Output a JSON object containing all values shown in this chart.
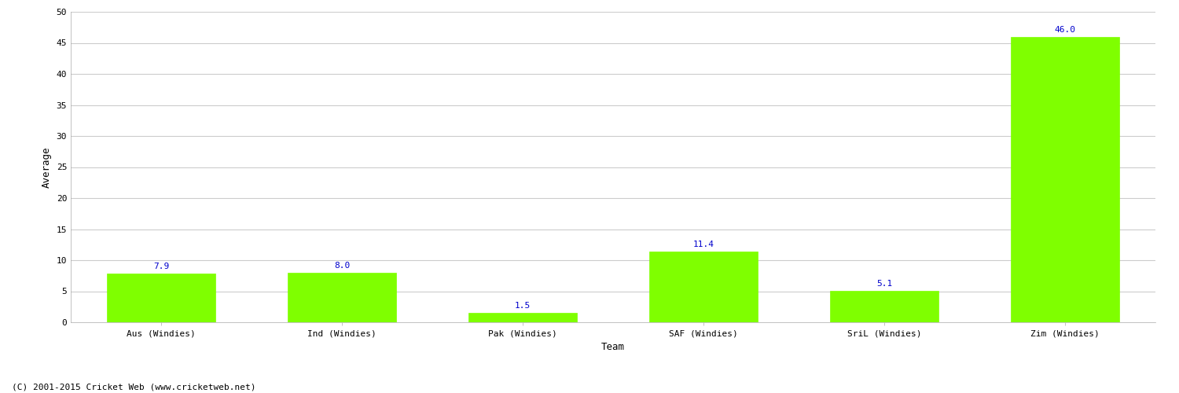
{
  "title": "",
  "categories": [
    "Aus (Windies)",
    "Ind (Windies)",
    "Pak (Windies)",
    "SAF (Windies)",
    "SriL (Windies)",
    "Zim (Windies)"
  ],
  "values": [
    7.9,
    8.0,
    1.5,
    11.4,
    5.1,
    46.0
  ],
  "bar_color": "#7fff00",
  "bar_edge_color": "#7fff00",
  "xlabel": "Team",
  "ylabel": "Average",
  "ylim": [
    0,
    50
  ],
  "yticks": [
    0,
    5,
    10,
    15,
    20,
    25,
    30,
    35,
    40,
    45,
    50
  ],
  "label_color": "#0000cc",
  "background_color": "#ffffff",
  "grid_color": "#cccccc",
  "footer": "(C) 2001-2015 Cricket Web (www.cricketweb.net)",
  "axis_label_fontsize": 9,
  "tick_fontsize": 8,
  "value_label_fontsize": 8,
  "footer_fontsize": 8
}
